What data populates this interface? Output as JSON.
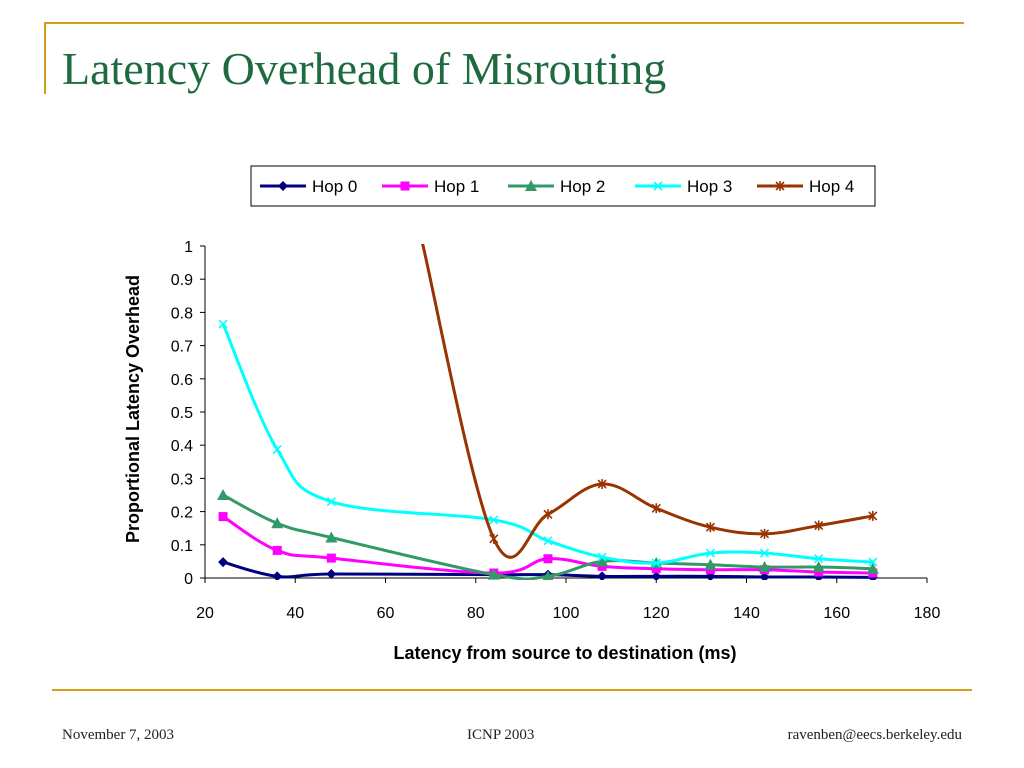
{
  "slide": {
    "title": "Latency Overhead of Misrouting",
    "footer_left": "November 7, 2003",
    "footer_center": "ICNP 2003",
    "footer_right": "ravenben@eecs.berkeley.edu"
  },
  "colors": {
    "accent_rule": "#d4a017",
    "title_text": "#1f6b40"
  },
  "chart_data": {
    "type": "line",
    "title": "",
    "xlabel": "Latency from source to destination (ms)",
    "ylabel": "Proportional Latency Overhead",
    "xlim": [
      20,
      180
    ],
    "ylim": [
      0,
      1
    ],
    "x_ticks": [
      "20",
      "40",
      "60",
      "80",
      "100",
      "120",
      "140",
      "160",
      "180"
    ],
    "y_ticks": [
      "0",
      "0.1",
      "0.2",
      "0.3",
      "0.4",
      "0.5",
      "0.6",
      "0.7",
      "0.8",
      "0.9",
      "1"
    ],
    "grid": false,
    "legend_position": "top",
    "series": [
      {
        "name": "Hop 0",
        "color": "#000080",
        "marker": "diamond",
        "x": [
          24,
          36,
          48,
          84,
          96,
          108,
          120,
          132,
          144,
          156,
          168
        ],
        "y": [
          0.048,
          0.005,
          0.012,
          0.01,
          0.01,
          0.005,
          0.005,
          0.005,
          0.003,
          0.003,
          0.002
        ]
      },
      {
        "name": "Hop 1",
        "color": "#ff00ff",
        "marker": "square",
        "x": [
          24,
          36,
          48,
          84,
          96,
          108,
          120,
          132,
          144,
          156,
          168
        ],
        "y": [
          0.185,
          0.083,
          0.06,
          0.015,
          0.058,
          0.035,
          0.028,
          0.025,
          0.025,
          0.018,
          0.015
        ]
      },
      {
        "name": "Hop 2",
        "color": "#339966",
        "marker": "triangle",
        "x": [
          24,
          36,
          48,
          84,
          96,
          108,
          120,
          132,
          144,
          156,
          168
        ],
        "y": [
          0.25,
          0.165,
          0.122,
          0.01,
          0.005,
          0.05,
          0.045,
          0.04,
          0.033,
          0.033,
          0.028
        ]
      },
      {
        "name": "Hop 3",
        "color": "#00ffff",
        "marker": "x",
        "x": [
          24,
          36,
          48,
          84,
          96,
          108,
          120,
          132,
          144,
          156,
          168
        ],
        "y": [
          0.765,
          0.387,
          0.23,
          0.175,
          0.112,
          0.063,
          0.045,
          0.075,
          0.075,
          0.058,
          0.048
        ]
      },
      {
        "name": "Hop 4",
        "color": "#993300",
        "marker": "star",
        "x": [
          68,
          84,
          96,
          108,
          120,
          132,
          144,
          156,
          168
        ],
        "y": [
          1.02,
          0.118,
          0.192,
          0.283,
          0.21,
          0.153,
          0.133,
          0.158,
          0.187
        ]
      }
    ]
  }
}
